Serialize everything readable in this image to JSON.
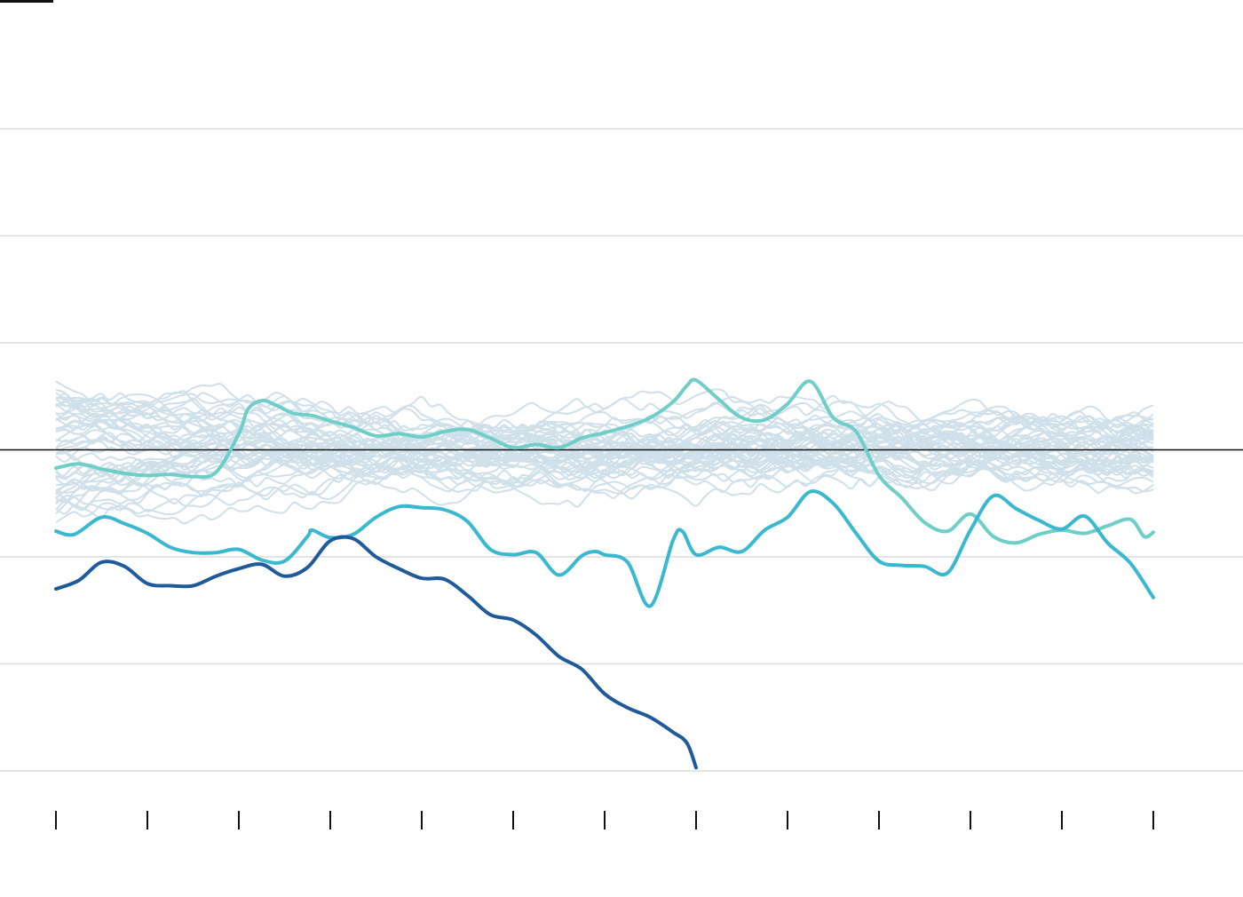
{
  "colors": {
    "background": "#ffffff",
    "gridline": "#dcdcdc",
    "baseline": "#111111",
    "tick": "#111111",
    "history_series": "#cfe0ea",
    "highlight_teal": "#6fcfc8",
    "highlight_cyan": "#3ab8cf",
    "highlight_navy": "#1f5a9a"
  },
  "chart_data": {
    "type": "line",
    "title": "",
    "xlabel": "",
    "ylabel": "",
    "legend": "none",
    "grid": true,
    "x_ticks": [
      0,
      1,
      2,
      3,
      4,
      5,
      6,
      7,
      8,
      9,
      10,
      11,
      12
    ],
    "x_range": [
      0,
      12
    ],
    "y_range": [
      -30,
      30
    ],
    "gridlines_y": [
      30,
      20,
      10,
      0,
      -10,
      -20,
      -30
    ],
    "baseline_y": 0,
    "history": {
      "count": 48,
      "seed": 7,
      "spread": 3.6,
      "note_visible": false
    },
    "series": [
      {
        "role": "highlight-teal",
        "x": [
          0,
          0.25,
          0.5,
          0.75,
          1,
          1.25,
          1.5,
          1.75,
          2,
          2.1,
          2.25,
          2.4,
          2.6,
          2.8,
          3,
          3.25,
          3.5,
          3.75,
          4,
          4.25,
          4.5,
          4.75,
          5,
          5.25,
          5.5,
          5.75,
          6,
          6.25,
          6.5,
          6.75,
          6.9,
          7,
          7.25,
          7.5,
          7.75,
          8,
          8.25,
          8.5,
          8.75,
          9,
          9.25,
          9.5,
          9.75,
          10,
          10.25,
          10.5,
          10.75,
          11,
          11.25,
          11.5,
          11.75,
          11.9,
          12
        ],
        "y": [
          -1.7,
          -1.3,
          -1.8,
          -2.2,
          -2.4,
          -2.3,
          -2.5,
          -2.1,
          1.5,
          3.8,
          4.6,
          4.2,
          3.4,
          3.2,
          2.7,
          2.1,
          1.3,
          1.5,
          1.2,
          1.7,
          1.9,
          1.1,
          0.2,
          0.5,
          0.2,
          1.1,
          1.6,
          2.2,
          3.0,
          4.5,
          6.0,
          6.5,
          4.7,
          3.0,
          2.8,
          4.3,
          6.4,
          3.0,
          1.7,
          -2.4,
          -4.5,
          -6.8,
          -7.6,
          -6.0,
          -8.1,
          -8.7,
          -7.9,
          -7.5,
          -7.8,
          -7.1,
          -6.5,
          -8.1,
          -7.7
        ]
      },
      {
        "role": "highlight-cyan",
        "x": [
          0,
          0.2,
          0.5,
          0.75,
          1,
          1.25,
          1.5,
          1.75,
          2,
          2.25,
          2.5,
          2.75,
          2.8,
          3,
          3.25,
          3.5,
          3.75,
          4,
          4.25,
          4.5,
          4.75,
          5,
          5.25,
          5.5,
          5.75,
          5.9,
          6,
          6.25,
          6.5,
          6.75,
          6.85,
          7,
          7.25,
          7.5,
          7.75,
          8,
          8.25,
          8.5,
          8.75,
          9,
          9.25,
          9.5,
          9.75,
          10,
          10.25,
          10.5,
          10.75,
          11,
          11.25,
          11.5,
          11.75,
          12
        ],
        "y": [
          -7.6,
          -7.9,
          -6.3,
          -6.9,
          -7.8,
          -9.1,
          -9.6,
          -9.6,
          -9.3,
          -10.3,
          -10.4,
          -8.1,
          -7.5,
          -8.2,
          -7.9,
          -6.3,
          -5.3,
          -5.4,
          -5.6,
          -6.7,
          -9.3,
          -9.8,
          -9.6,
          -11.7,
          -9.9,
          -9.5,
          -9.8,
          -10.5,
          -14.6,
          -8.4,
          -7.6,
          -9.8,
          -9.1,
          -9.5,
          -7.5,
          -6.3,
          -3.9,
          -5.0,
          -7.8,
          -10.4,
          -10.8,
          -10.9,
          -11.5,
          -7.5,
          -4.3,
          -5.5,
          -6.6,
          -7.4,
          -6.2,
          -8.7,
          -10.6,
          -13.8
        ]
      },
      {
        "role": "highlight-navy",
        "x": [
          0,
          0.25,
          0.5,
          0.75,
          1,
          1.25,
          1.5,
          1.75,
          2,
          2.25,
          2.5,
          2.75,
          3,
          3.25,
          3.5,
          3.75,
          4,
          4.25,
          4.5,
          4.75,
          5,
          5.25,
          5.5,
          5.75,
          6,
          6.25,
          6.5,
          6.75,
          6.9,
          7.0
        ],
        "y": [
          -13.0,
          -12.2,
          -10.5,
          -10.9,
          -12.5,
          -12.7,
          -12.7,
          -11.8,
          -11.1,
          -10.7,
          -11.8,
          -11.0,
          -8.5,
          -8.3,
          -10.0,
          -11.1,
          -12.0,
          -12.1,
          -13.6,
          -15.4,
          -15.9,
          -17.3,
          -19.3,
          -20.5,
          -22.8,
          -24.1,
          -25.0,
          -26.4,
          -27.4,
          -29.7
        ]
      }
    ]
  }
}
